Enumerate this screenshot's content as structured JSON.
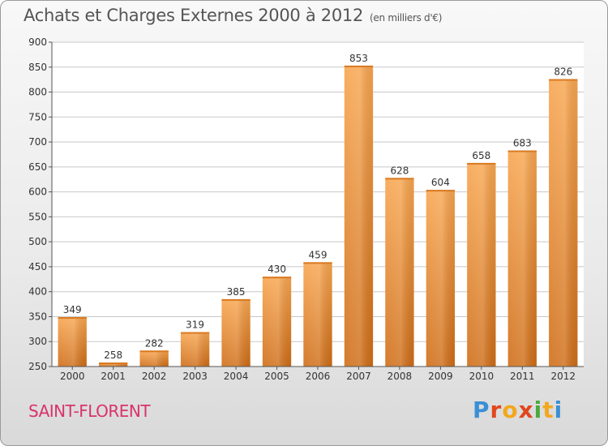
{
  "header": {
    "title": "Achats et Charges Externes 2000 à 2012",
    "unit": "(en milliers d'€)"
  },
  "footer": {
    "city": "SAINT-FLORENT",
    "logo": [
      "P",
      "r",
      "o",
      "x",
      "i",
      "t",
      "i"
    ],
    "logo_colors": [
      "#3a8fd6",
      "#e2461f",
      "#f2a81d",
      "#e2461f",
      "#4caa3c",
      "#f2a81d",
      "#3a8fd6"
    ]
  },
  "colors": {
    "bar_light": "#f8a650",
    "bar_dark": "#cf6d17",
    "grid": "#c8c8c8",
    "plot_bg": "#ffffff"
  },
  "chart_data": {
    "type": "bar",
    "categories": [
      "2000",
      "2001",
      "2002",
      "2003",
      "2004",
      "2005",
      "2006",
      "2007",
      "2008",
      "2009",
      "2010",
      "2011",
      "2012"
    ],
    "values": [
      349,
      258,
      282,
      319,
      385,
      430,
      459,
      853,
      628,
      604,
      658,
      683,
      826
    ],
    "ylim": [
      250,
      900
    ],
    "yticks": [
      250,
      300,
      350,
      400,
      450,
      500,
      550,
      600,
      650,
      700,
      750,
      800,
      850,
      900
    ],
    "grid": true
  }
}
